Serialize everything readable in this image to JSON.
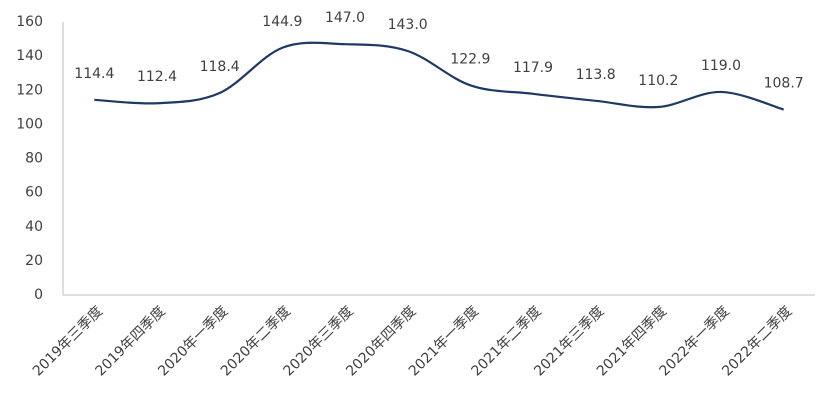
{
  "chart_data": {
    "type": "line",
    "categories": [
      "2019年三季度",
      "2019年四季度",
      "2020年一季度",
      "2020年二季度",
      "2020年三季度",
      "2020年四季度",
      "2021年一季度",
      "2021年二季度",
      "2021年三季度",
      "2021年四季度",
      "2022年一季度",
      "2022年二季度"
    ],
    "values": [
      114.4,
      112.4,
      118.4,
      144.9,
      147.0,
      143.0,
      122.9,
      117.9,
      113.8,
      110.2,
      119.0,
      108.7
    ],
    "value_labels": [
      "114.4",
      "112.4",
      "118.4",
      "144.9",
      "147.0",
      "143.0",
      "122.9",
      "117.9",
      "113.8",
      "110.2",
      "119.0",
      "108.7"
    ],
    "color": "#1f3864",
    "smooth": true,
    "ylim": [
      0,
      160
    ],
    "yticks": [
      0,
      20,
      40,
      60,
      80,
      100,
      120,
      140,
      160
    ],
    "grid": false
  }
}
